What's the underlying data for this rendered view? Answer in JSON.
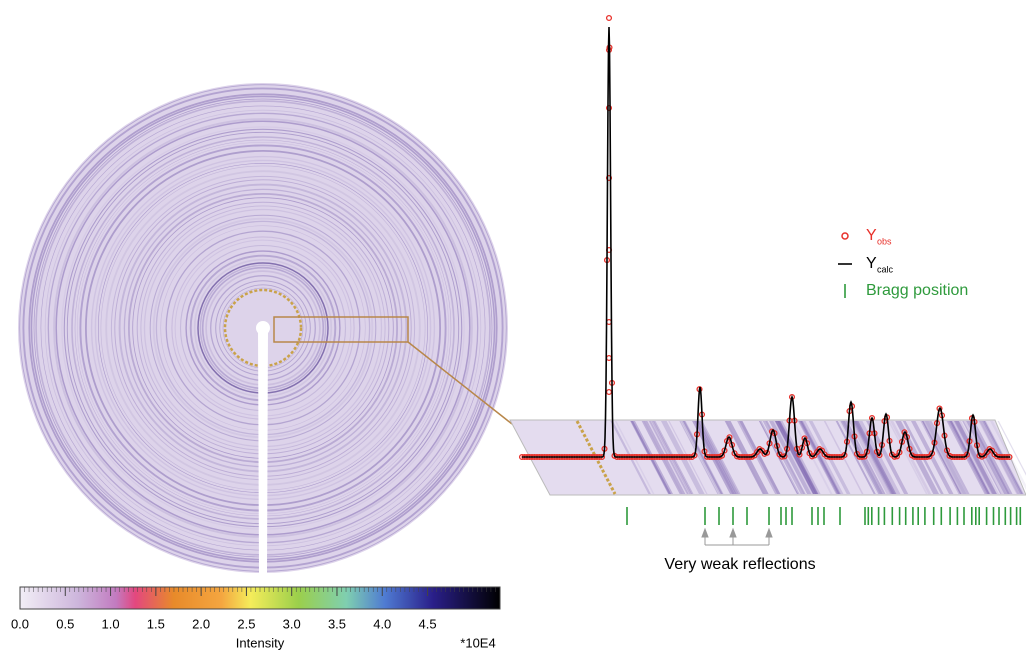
{
  "colorbar": {
    "lim": [
      0,
      5.3
    ],
    "ticks": [
      {
        "value": 0,
        "label": "0.0"
      },
      0.5,
      {
        "value": 1,
        "label": "1.0"
      },
      1.5,
      {
        "value": 2,
        "label": "2.0"
      },
      2.5,
      {
        "value": 3,
        "label": "3.0"
      },
      3.5,
      {
        "value": 4,
        "label": "4.0"
      },
      4.5
    ],
    "label": "Intensity",
    "multiplier": "*10E4"
  },
  "legend": [
    {
      "symbol": "Y",
      "subscript": "obs",
      "color": "#e8302a"
    },
    {
      "symbol": "Y",
      "subscript": "calc",
      "color": "#000000"
    },
    {
      "text": "Bragg position",
      "color": "#2e9a3c"
    }
  ],
  "annotation": "Very weak reflections"
}
